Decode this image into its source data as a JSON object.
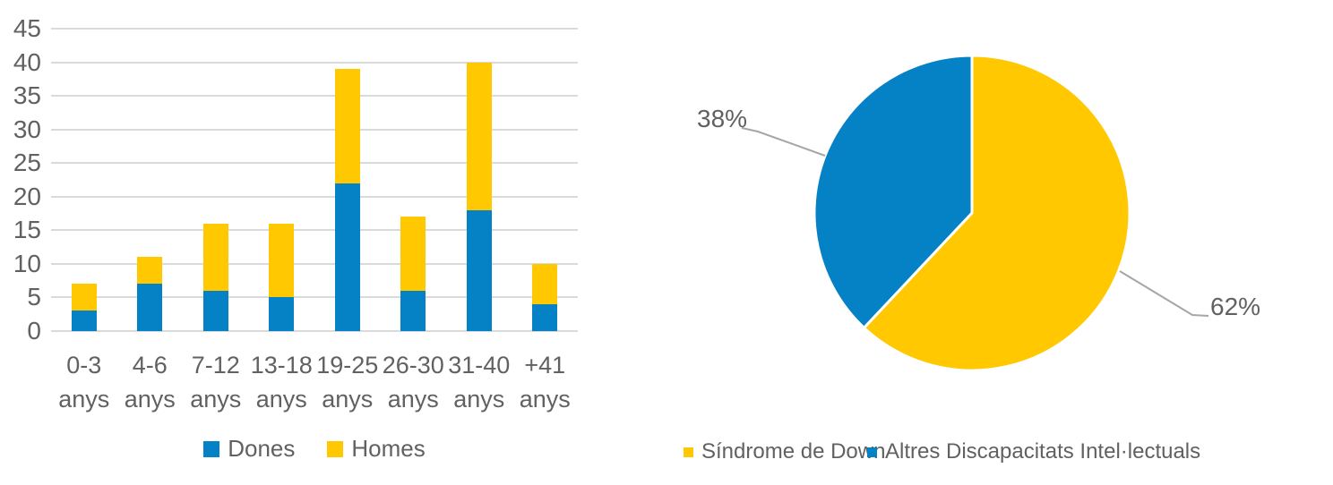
{
  "colors": {
    "dones_blue": "#0581C5",
    "homes_yellow": "#FFC800",
    "text_gray": "#616161",
    "gridline_gray": "#DADADA",
    "leader_gray": "#A6A6A6",
    "slice_gap_white": "#FFFFFF"
  },
  "chart_data": [
    {
      "type": "bar",
      "stacked": true,
      "title": "",
      "categories": [
        "0-3 anys",
        "4-6 anys",
        "7-12 anys",
        "13-18 anys",
        "19-25 anys",
        "26-30 anys",
        "31-40 anys",
        "+41 anys"
      ],
      "series": [
        {
          "name": "Dones",
          "color": "#0581C5",
          "values": [
            3,
            7,
            6,
            5,
            22,
            6,
            18,
            4
          ]
        },
        {
          "name": "Homes",
          "color": "#FFC800",
          "values": [
            4,
            4,
            10,
            11,
            17,
            11,
            22,
            6
          ]
        }
      ],
      "xlabel": "",
      "ylabel": "",
      "ylim": [
        0,
        45
      ],
      "yticks": [
        0,
        5,
        10,
        15,
        20,
        25,
        30,
        35,
        40,
        45
      ],
      "grid": true,
      "legend_position": "bottom"
    },
    {
      "type": "pie",
      "title": "",
      "start_angle_deg": 0,
      "direction": "clockwise",
      "slices": [
        {
          "name": "Síndrome de Down",
          "value": 62,
          "label": "62%",
          "color": "#FFC800"
        },
        {
          "name": "Altres Discapacitats Intel·lectuals",
          "value": 38,
          "label": "38%",
          "color": "#0581C5"
        }
      ],
      "legend_position": "bottom"
    }
  ]
}
